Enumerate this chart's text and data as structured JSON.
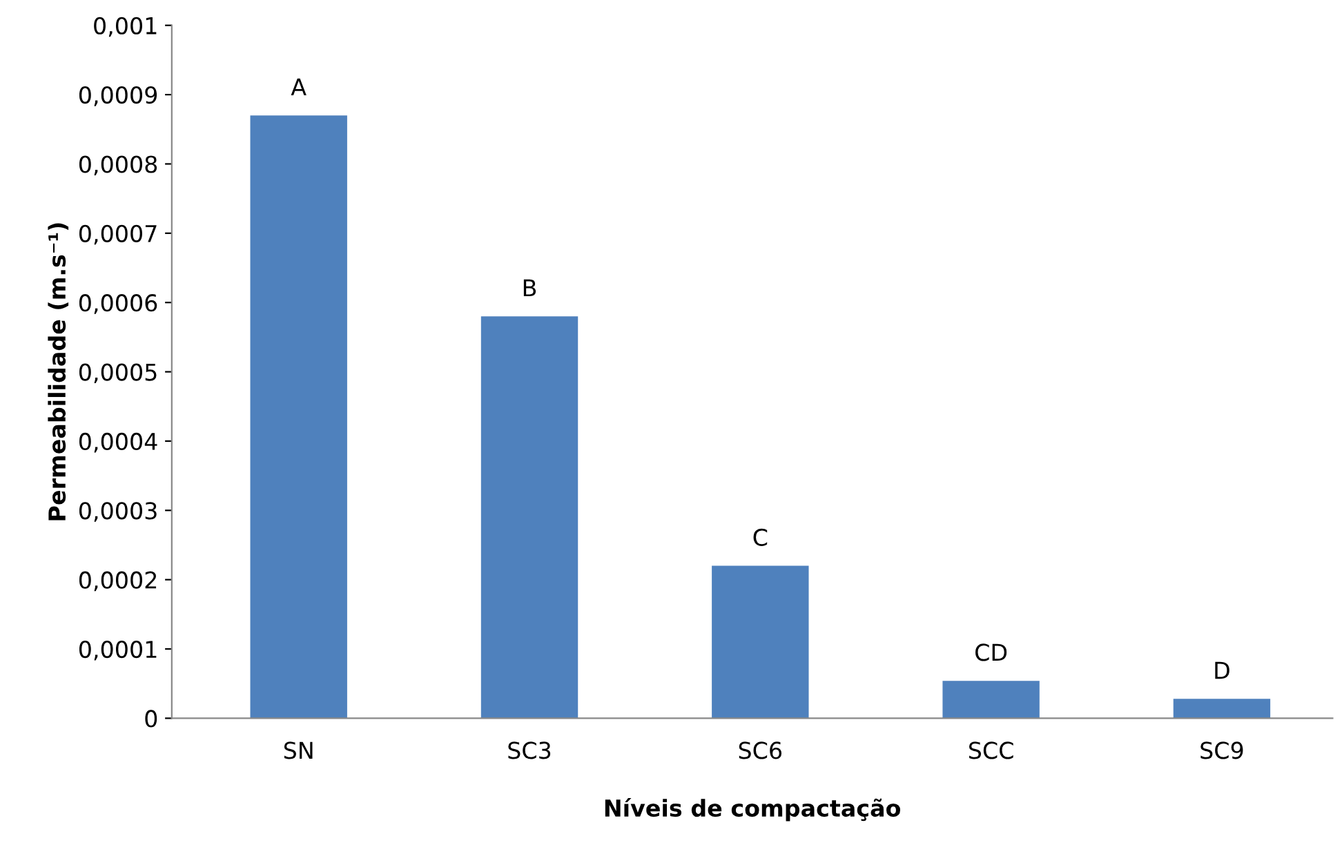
{
  "chart_data": {
    "type": "bar",
    "xlabel": "Níveis de compactação",
    "ylabel": "Permeabilidade (m.s⁻¹)",
    "categories": [
      "SN",
      "SC3",
      "SC6",
      "SCC",
      "SC9"
    ],
    "values": [
      0.00087,
      0.00058,
      0.00022,
      5.4e-05,
      2.8e-05
    ],
    "value_labels": [
      "A",
      "B",
      "C",
      "CD",
      "D"
    ],
    "color": "#4f81bd",
    "ylim": [
      0,
      0.001
    ],
    "yticks": [
      {
        "value": 0,
        "label": "0"
      },
      {
        "value": 0.0001,
        "label": "0,0001"
      },
      {
        "value": 0.0002,
        "label": "0,0002"
      },
      {
        "value": 0.0003,
        "label": "0,0003"
      },
      {
        "value": 0.0004,
        "label": "0,0004"
      },
      {
        "value": 0.0005,
        "label": "0,0005"
      },
      {
        "value": 0.0006,
        "label": "0,0006"
      },
      {
        "value": 0.0007,
        "label": "0,0007"
      },
      {
        "value": 0.0008,
        "label": "0,0008"
      },
      {
        "value": 0.0009,
        "label": "0,0009"
      },
      {
        "value": 0.001,
        "label": "0,001"
      }
    ],
    "grid": false,
    "legend": false
  }
}
